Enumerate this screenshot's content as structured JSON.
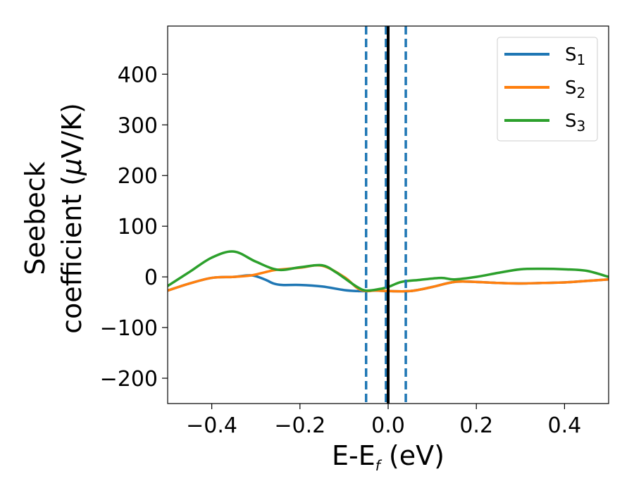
{
  "chart_data": {
    "type": "line",
    "xlabel": "E-E",
    "xlabel_sub": "f",
    "xlabel_unit": " (eV)",
    "ylabel_line1": "Seebeck",
    "ylabel_line2_prefix": "coefficient  (",
    "ylabel_mu": "μ",
    "ylabel_line2_suffix": "V/K)",
    "xlim": [
      -0.5,
      0.5
    ],
    "ylim": [
      -250,
      495
    ],
    "xticks": [
      -0.4,
      -0.2,
      0.0,
      0.2,
      0.4
    ],
    "xtick_labels": [
      "−0.4",
      "−0.2",
      "0.0",
      "0.2",
      "0.4"
    ],
    "yticks": [
      -200,
      -100,
      0,
      100,
      200,
      300,
      400
    ],
    "ytick_labels": [
      "−200",
      "−100",
      "0",
      "100",
      "200",
      "300",
      "400"
    ],
    "grid": false,
    "legend_position": "top-right",
    "vlines": [
      {
        "x": -0.05,
        "style": "dashed",
        "color": "#1f77b4"
      },
      {
        "x": -0.005,
        "style": "dashed",
        "color": "#1f77b4"
      },
      {
        "x": 0.04,
        "style": "dashed",
        "color": "#1f77b4"
      },
      {
        "x": 0.0,
        "style": "solid",
        "color": "#000000"
      }
    ],
    "series": [
      {
        "name": "S",
        "name_sub": "1",
        "color": "#1f77b4",
        "x": [
          -0.5,
          -0.45,
          -0.4,
          -0.35,
          -0.31,
          -0.28,
          -0.26,
          -0.24,
          -0.2,
          -0.15,
          -0.1,
          -0.07,
          -0.05,
          -0.03,
          0.0,
          0.05,
          0.1,
          0.15,
          0.2,
          0.25,
          0.3,
          0.35,
          0.4,
          0.45,
          0.5
        ],
        "y": [
          -27,
          -13,
          -2,
          0,
          3,
          -5,
          -13,
          -16,
          -16,
          -19,
          -26,
          -28,
          -28,
          -27,
          -28,
          -28,
          -20,
          -10,
          -10,
          -12,
          -13,
          -12,
          -11,
          -8,
          -5
        ]
      },
      {
        "name": "S",
        "name_sub": "2",
        "color": "#ff7f0e",
        "x": [
          -0.5,
          -0.45,
          -0.4,
          -0.35,
          -0.31,
          -0.28,
          -0.26,
          -0.24,
          -0.2,
          -0.15,
          -0.1,
          -0.07,
          -0.05,
          -0.03,
          0.0,
          0.05,
          0.1,
          0.15,
          0.2,
          0.25,
          0.3,
          0.35,
          0.4,
          0.45,
          0.5
        ],
        "y": [
          -27,
          -13,
          -2,
          0,
          3,
          9,
          13,
          15,
          18,
          22,
          0,
          -22,
          -28,
          -27,
          -28,
          -28,
          -20,
          -10,
          -10,
          -12,
          -13,
          -12,
          -11,
          -8,
          -5
        ]
      },
      {
        "name": "S",
        "name_sub": "3",
        "color": "#2ca02c",
        "x": [
          -0.5,
          -0.45,
          -0.4,
          -0.35,
          -0.3,
          -0.25,
          -0.2,
          -0.15,
          -0.12,
          -0.1,
          -0.07,
          -0.05,
          -0.02,
          0.0,
          0.03,
          0.07,
          0.12,
          0.15,
          0.2,
          0.25,
          0.3,
          0.35,
          0.4,
          0.45,
          0.5
        ],
        "y": [
          -18,
          10,
          38,
          50,
          30,
          14,
          19,
          23,
          10,
          -2,
          -20,
          -27,
          -24,
          -20,
          -10,
          -6,
          -2,
          -5,
          0,
          8,
          15,
          16,
          15,
          12,
          0
        ]
      }
    ]
  }
}
